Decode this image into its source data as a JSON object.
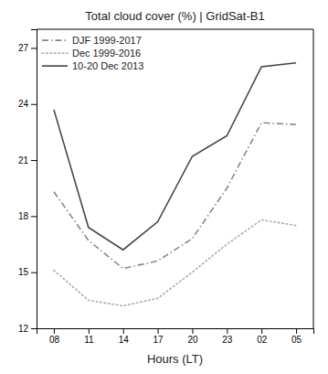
{
  "chart_data": {
    "type": "line",
    "title": "Total cloud cover (%) | GridSat-B1",
    "xlabel": "Hours (LT)",
    "categories": [
      "08",
      "11",
      "14",
      "17",
      "20",
      "23",
      "02",
      "05"
    ],
    "series": [
      {
        "name": "DJF 1999-2017",
        "color": "#888888",
        "line_style": "dashdot",
        "values": [
          19.3,
          16.7,
          15.2,
          15.6,
          16.8,
          19.5,
          23.0,
          22.9
        ]
      },
      {
        "name": "Dec 1999-2016",
        "color": "#aaaaaa",
        "line_style": "dotted",
        "values": [
          15.1,
          13.5,
          13.2,
          13.6,
          15.0,
          16.5,
          17.8,
          17.5
        ]
      },
      {
        "name": "10-20 Dec 2013",
        "color": "#444444",
        "line_style": "solid",
        "values": [
          23.7,
          17.4,
          16.2,
          17.7,
          21.2,
          22.3,
          26.0,
          26.2
        ]
      }
    ],
    "ylim": [
      12,
      28
    ],
    "yticks": [
      12,
      15,
      18,
      21,
      24,
      27
    ],
    "grid": false,
    "legend": "upper left"
  }
}
